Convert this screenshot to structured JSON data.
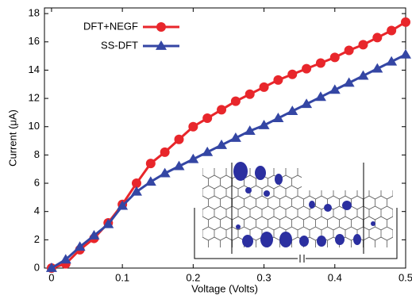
{
  "chart_data": {
    "type": "line",
    "x_label": "Voltage (Volts)",
    "y_label": "Current (μA)",
    "x": [
      0,
      0.02,
      0.04,
      0.06,
      0.08,
      0.1,
      0.12,
      0.14,
      0.16,
      0.18,
      0.2,
      0.22,
      0.24,
      0.26,
      0.28,
      0.3,
      0.32,
      0.34,
      0.36,
      0.38,
      0.4,
      0.42,
      0.44,
      0.46,
      0.48,
      0.5
    ],
    "series": [
      {
        "name": "DFT+NEGF",
        "color": "#e8262b",
        "marker": "circle",
        "values": [
          0,
          0.3,
          1.3,
          2.1,
          3.2,
          4.5,
          6.0,
          7.4,
          8.2,
          9.1,
          10.0,
          10.6,
          11.2,
          11.8,
          12.3,
          12.8,
          13.3,
          13.7,
          14.1,
          14.5,
          14.9,
          15.4,
          15.8,
          16.3,
          16.8,
          17.4
        ]
      },
      {
        "name": "SS-DFT",
        "color": "#3446a4",
        "marker": "triangle",
        "values": [
          0,
          0.6,
          1.5,
          2.3,
          3.1,
          4.4,
          5.4,
          6.1,
          6.7,
          7.2,
          7.7,
          8.2,
          8.7,
          9.2,
          9.7,
          10.1,
          10.6,
          11.1,
          11.6,
          12.1,
          12.6,
          13.1,
          13.6,
          14.1,
          14.6,
          15.1
        ]
      }
    ],
    "xlim": [
      -0.01,
      0.5
    ],
    "xticks": [
      0,
      0.1,
      0.2,
      0.3,
      0.4,
      0.5
    ],
    "ylim": [
      0,
      18.4
    ],
    "yticks": [
      0,
      2,
      4,
      6,
      8,
      10,
      12,
      14,
      16,
      18
    ],
    "legend": "upper left"
  }
}
